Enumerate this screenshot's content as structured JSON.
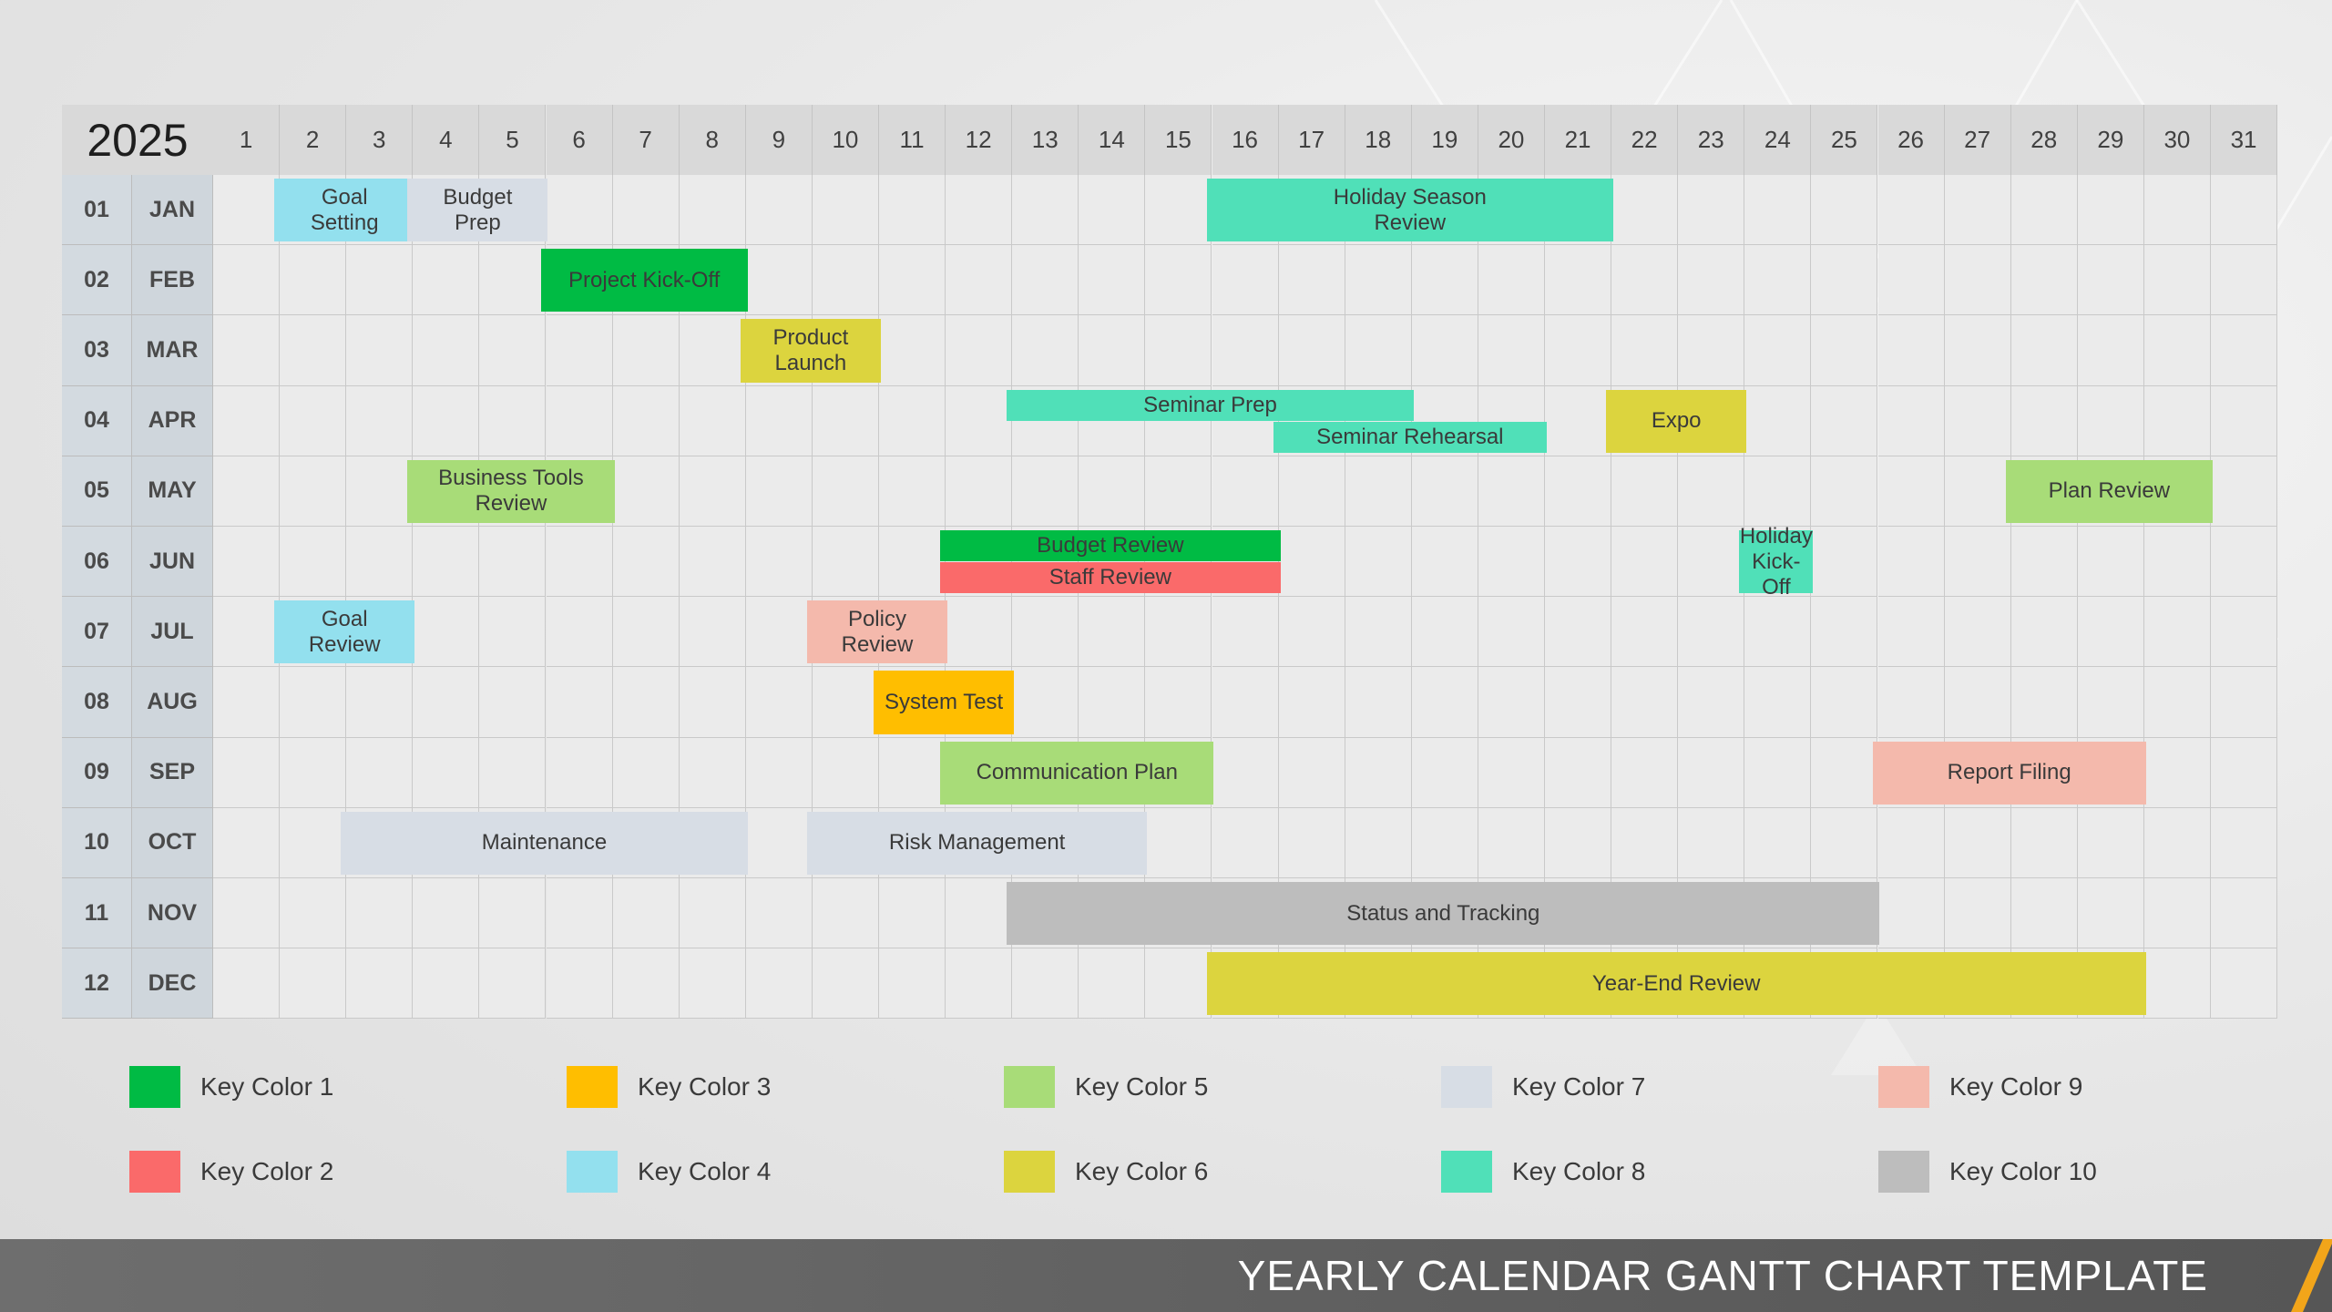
{
  "footer": {
    "title": "YEARLY CALENDAR GANTT CHART TEMPLATE"
  },
  "colors": {
    "key1": "#00bb44",
    "key2": "#fa6a6a",
    "key3": "#ffbe00",
    "key4": "#93e0ee",
    "key5": "#a8dc78",
    "key6": "#dcd43e",
    "key7": "#d7dde5",
    "key8": "#50e0b8",
    "key9": "#f4b9ac",
    "key10": "#bdbdbd"
  },
  "legend": [
    {
      "label": "Key Color 1",
      "color": "#00bb44"
    },
    {
      "label": "Key Color 2",
      "color": "#fa6a6a"
    },
    {
      "label": "Key Color 3",
      "color": "#ffbe00"
    },
    {
      "label": "Key Color 4",
      "color": "#93e0ee"
    },
    {
      "label": "Key Color 5",
      "color": "#a8dc78"
    },
    {
      "label": "Key Color 6",
      "color": "#dcd43e"
    },
    {
      "label": "Key Color 7",
      "color": "#d7dde5"
    },
    {
      "label": "Key Color 8",
      "color": "#50e0b8"
    },
    {
      "label": "Key Color 9",
      "color": "#f4b9ac"
    },
    {
      "label": "Key Color 10",
      "color": "#bdbdbd"
    }
  ],
  "chart_data": {
    "type": "gantt",
    "year": "2025",
    "days": [
      "1",
      "2",
      "3",
      "4",
      "5",
      "6",
      "7",
      "8",
      "9",
      "10",
      "11",
      "12",
      "13",
      "14",
      "15",
      "16",
      "17",
      "18",
      "19",
      "20",
      "21",
      "22",
      "23",
      "24",
      "25",
      "26",
      "27",
      "28",
      "29",
      "30",
      "31"
    ],
    "months": [
      {
        "num": "01",
        "name": "JAN"
      },
      {
        "num": "02",
        "name": "FEB"
      },
      {
        "num": "03",
        "name": "MAR"
      },
      {
        "num": "04",
        "name": "APR"
      },
      {
        "num": "05",
        "name": "MAY"
      },
      {
        "num": "06",
        "name": "JUN"
      },
      {
        "num": "07",
        "name": "JUL"
      },
      {
        "num": "08",
        "name": "AUG"
      },
      {
        "num": "09",
        "name": "SEP"
      },
      {
        "num": "10",
        "name": "OCT"
      },
      {
        "num": "11",
        "name": "NOV"
      },
      {
        "num": "12",
        "name": "DEC"
      }
    ],
    "tasks": [
      {
        "label": "Goal\nSetting",
        "month": 1,
        "start": 2,
        "end": 3,
        "key": 4
      },
      {
        "label": "Budget\nPrep",
        "month": 1,
        "start": 4,
        "end": 5,
        "key": 7
      },
      {
        "label": "Holiday Season\nReview",
        "month": 1,
        "start": 16,
        "end": 21,
        "key": 8
      },
      {
        "label": "Project Kick-Off",
        "month": 2,
        "start": 6,
        "end": 8,
        "key": 1
      },
      {
        "label": "Product\nLaunch",
        "month": 3,
        "start": 9,
        "end": 10,
        "key": 6
      },
      {
        "label": "Seminar Prep",
        "month": 4,
        "start": 13,
        "end": 18,
        "key": 8,
        "lane": "top"
      },
      {
        "label": "Seminar Rehearsal",
        "month": 4,
        "start": 17,
        "end": 20,
        "key": 8,
        "lane": "bottom"
      },
      {
        "label": "Expo",
        "month": 4,
        "start": 22,
        "end": 23,
        "key": 6
      },
      {
        "label": "Business Tools\nReview",
        "month": 5,
        "start": 4,
        "end": 6,
        "key": 5
      },
      {
        "label": "Plan Review",
        "month": 5,
        "start": 28,
        "end": 30,
        "key": 5
      },
      {
        "label": "Budget Review",
        "month": 6,
        "start": 12,
        "end": 16,
        "key": 1,
        "lane": "top"
      },
      {
        "label": "Staff Review",
        "month": 6,
        "start": 12,
        "end": 16,
        "key": 2,
        "lane": "bottom"
      },
      {
        "label": "Holiday\nKick-Off",
        "month": 6,
        "start": 24,
        "end": 24,
        "key": 8
      },
      {
        "label": "Goal\nReview",
        "month": 7,
        "start": 2,
        "end": 3,
        "key": 4
      },
      {
        "label": "Policy\nReview",
        "month": 7,
        "start": 10,
        "end": 11,
        "key": 9
      },
      {
        "label": "System Test",
        "month": 8,
        "start": 11,
        "end": 12,
        "key": 3
      },
      {
        "label": "Communication Plan",
        "month": 9,
        "start": 12,
        "end": 15,
        "key": 5
      },
      {
        "label": "Report Filing",
        "month": 9,
        "start": 26,
        "end": 29,
        "key": 9
      },
      {
        "label": "Maintenance",
        "month": 10,
        "start": 3,
        "end": 8,
        "key": 7
      },
      {
        "label": "Risk Management",
        "month": 10,
        "start": 10,
        "end": 14,
        "key": 7
      },
      {
        "label": "Status and Tracking",
        "month": 11,
        "start": 13,
        "end": 25,
        "key": 10
      },
      {
        "label": "Year-End Review",
        "month": 12,
        "start": 16,
        "end": 29,
        "key": 6
      }
    ]
  }
}
